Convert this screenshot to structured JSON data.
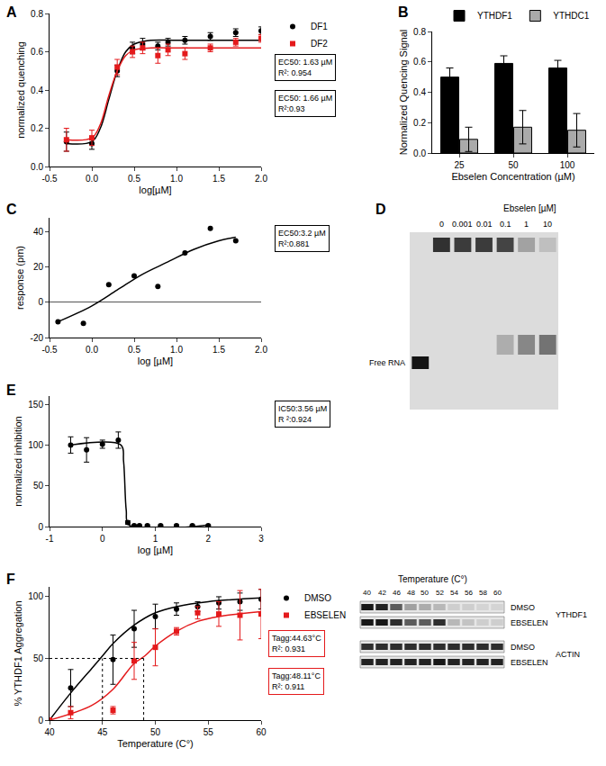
{
  "chart_data": [
    {
      "type": "scatter",
      "title": "A",
      "x_label": "log[µM]",
      "y_label": "normalized quenching",
      "xlim": [
        -0.5,
        2
      ],
      "ylim": [
        0,
        0.8
      ],
      "xticks": [
        -0.5,
        {
          "value": 0,
          "label": "0.0"
        },
        0.5,
        {
          "value": 1,
          "label": "1.0"
        },
        1.5,
        {
          "value": 2,
          "label": "2.0"
        }
      ],
      "yticks": [
        {
          "value": 0,
          "label": "0.0"
        },
        0.2,
        0.4,
        0.6,
        0.8
      ],
      "legend": "top right",
      "series": [
        {
          "name": "DF1",
          "color": "#000000",
          "marker": "circle",
          "x": [
            -0.3,
            0,
            0.3,
            0.48,
            0.6,
            0.78,
            0.9,
            1.1,
            1.4,
            1.7,
            2.0
          ],
          "values": [
            0.13,
            0.12,
            0.5,
            0.62,
            0.64,
            0.63,
            0.65,
            0.66,
            0.68,
            0.7,
            0.71
          ],
          "errors": [
            0.05,
            0.03,
            0.03,
            0.03,
            0.03,
            0.02,
            0.02,
            0.02,
            0.02,
            0.02,
            0.02
          ],
          "fit_x": [
            -0.3,
            0,
            0.1,
            0.2,
            0.3,
            0.4,
            0.5,
            0.7,
            1,
            1.5,
            2.0
          ],
          "fit_values": [
            0.12,
            0.13,
            0.2,
            0.35,
            0.5,
            0.6,
            0.64,
            0.66,
            0.66,
            0.66,
            0.66
          ]
        },
        {
          "name": "DF2",
          "color": "#e41a1c",
          "marker": "square",
          "x": [
            -0.3,
            0,
            0.3,
            0.48,
            0.6,
            0.78,
            0.9,
            1.1,
            1.4,
            1.7,
            2.0
          ],
          "values": [
            0.14,
            0.15,
            0.52,
            0.6,
            0.62,
            0.58,
            0.61,
            0.59,
            0.62,
            0.65,
            0.67
          ],
          "errors": [
            0.06,
            0.04,
            0.04,
            0.03,
            0.03,
            0.04,
            0.03,
            0.03,
            0.02,
            0.02,
            0.02
          ],
          "fit_x": [
            -0.3,
            0,
            0.1,
            0.2,
            0.3,
            0.4,
            0.5,
            0.7,
            1,
            1.5,
            2.0
          ],
          "fit_values": [
            0.14,
            0.15,
            0.22,
            0.37,
            0.5,
            0.58,
            0.61,
            0.62,
            0.62,
            0.62,
            0.62
          ]
        }
      ],
      "annotations": [
        [
          "EC50: 1.63 µM",
          "R²: 0.954"
        ],
        [
          "EC50: 1.66 µM",
          "R²:0.93"
        ]
      ],
      "annotation_color": "#000000"
    },
    {
      "type": "bar",
      "title": "B",
      "x_label": "Ebselen Concentration (µM)",
      "y_label": "Normalized Quencing Signal",
      "categories": [
        "25",
        "50",
        "100"
      ],
      "ylim": [
        0,
        0.8
      ],
      "yticks": [
        {
          "value": 0,
          "label": "0.0"
        },
        0.2,
        0.4,
        0.6,
        0.8
      ],
      "legend": "top right",
      "series": [
        {
          "name": "YTHDF1",
          "color": "#000000",
          "values": [
            0.5,
            0.59,
            0.56
          ],
          "errors": [
            0.06,
            0.05,
            0.05
          ]
        },
        {
          "name": "YTHDC1",
          "color": "#aaaaaa",
          "values": [
            0.09,
            0.17,
            0.15
          ],
          "errors": [
            0.08,
            0.11,
            0.11
          ]
        }
      ]
    },
    {
      "type": "scatter",
      "title": "C",
      "x_label": "log [µM]",
      "y_label": "response (pm)",
      "xlim": [
        -0.5,
        2
      ],
      "ylim": [
        -20,
        48
      ],
      "xticks": [
        -0.5,
        {
          "value": 0,
          "label": "0.0"
        },
        0.5,
        {
          "value": 1,
          "label": "1.0"
        },
        1.5,
        {
          "value": 2,
          "label": "2.0"
        }
      ],
      "yticks": [
        -20,
        0,
        20,
        40
      ],
      "series": [
        {
          "color": "#000000",
          "marker": "circle",
          "x": [
            -0.4,
            -0.1,
            0.2,
            0.5,
            0.78,
            1.1,
            1.4,
            1.7
          ],
          "values": [
            -11,
            -12,
            10,
            15,
            9,
            28,
            42,
            35
          ],
          "fit_x": [
            -0.4,
            0,
            0.3,
            0.6,
            0.9,
            1.2,
            1.5,
            1.7
          ],
          "fit_values": [
            -11,
            -2,
            7,
            16,
            23,
            30,
            35,
            37
          ]
        }
      ],
      "annotations": [
        [
          "EC50:3.2 µM",
          "R²:0.881"
        ]
      ],
      "annotation_color": "#000000"
    },
    {
      "type": "scatter",
      "title": "E",
      "x_label": "log [µM]",
      "y_label": "normalized inhibition",
      "xlim": [
        -1,
        3
      ],
      "ylim": [
        0,
        160
      ],
      "xticks": [
        -1,
        0,
        1,
        2,
        3
      ],
      "yticks": [
        0,
        50,
        100,
        150
      ],
      "series": [
        {
          "color": "#000000",
          "marker": "circle",
          "x": [
            -0.6,
            -0.3,
            0,
            0.3,
            0.48,
            0.6,
            0.7,
            0.85,
            1.1,
            1.4,
            1.7,
            2.0
          ],
          "values": [
            100,
            94,
            101,
            106,
            5,
            1,
            1,
            1,
            1,
            1,
            1,
            1
          ],
          "errors": [
            10,
            15,
            5,
            10,
            2,
            1,
            1,
            1,
            1,
            1,
            1,
            1
          ],
          "fit_x": [
            -0.6,
            0.35,
            0.4,
            0.45,
            0.5,
            2.0
          ],
          "fit_values": [
            100,
            100,
            80,
            20,
            2,
            2
          ]
        }
      ],
      "annotations": [
        [
          "IC50:3.56 µM",
          "R ²:0.924"
        ]
      ],
      "annotation_color": "#000000"
    },
    {
      "type": "scatter",
      "title": "F",
      "x_label": "Temperature (C°)",
      "y_label": "% YTHDF1 Aggregation",
      "xlim": [
        40,
        60
      ],
      "ylim": [
        0,
        108
      ],
      "xticks": [
        40,
        45,
        50,
        55,
        60
      ],
      "yticks": [
        0,
        50,
        100
      ],
      "legend": "top right",
      "series": [
        {
          "name": "DMSO",
          "color": "#000000",
          "marker": "circle",
          "x": [
            40,
            42,
            46,
            48,
            50,
            52,
            54,
            56,
            58,
            60
          ],
          "values": [
            0,
            26,
            49,
            74,
            84,
            90,
            92,
            95,
            96,
            98
          ],
          "errors": [
            0,
            15,
            20,
            15,
            10,
            5,
            4,
            5,
            7,
            8
          ],
          "fit_x": [
            40,
            42,
            44,
            45,
            46,
            48,
            50,
            52,
            55,
            60
          ],
          "fit_values": [
            0,
            22,
            42,
            52,
            62,
            77,
            87,
            92,
            96,
            99
          ]
        },
        {
          "name": "EBSELEN",
          "color": "#e41a1c",
          "marker": "square",
          "x": [
            40,
            42,
            46,
            48,
            50,
            52,
            54,
            56,
            58,
            60
          ],
          "values": [
            0,
            6,
            8,
            48,
            59,
            72,
            87,
            86,
            85,
            86
          ],
          "errors": [
            0,
            5,
            3,
            15,
            15,
            3,
            5,
            10,
            20,
            20
          ],
          "fit_x": [
            40,
            44,
            46,
            48,
            49,
            50,
            52,
            54,
            56,
            60
          ],
          "fit_values": [
            0,
            12,
            25,
            46,
            52,
            60,
            72,
            80,
            84,
            88
          ]
        }
      ],
      "guide_lines": {
        "x": [
          45,
          48.9
        ],
        "y": 50
      },
      "annotations": [
        [
          "Tagg:44.63°C",
          "R²: 0.931"
        ],
        [
          "Tagg:48.11°C",
          "R²: 0.911"
        ]
      ],
      "annotation_color": "#e41a1c"
    }
  ],
  "gel": {
    "title": "D",
    "label": "Ebselen [µM]",
    "free_label": "Free RNA",
    "lanes": [
      null,
      "0",
      "0.001",
      "0.01",
      "0.1",
      "1",
      "10"
    ],
    "shifted": [
      0,
      0.9,
      0.85,
      0.85,
      0.8,
      0.3,
      0.15
    ],
    "smear": [
      0,
      0,
      0,
      0,
      0.25,
      0.45,
      0.55
    ],
    "free": [
      1,
      0,
      0,
      0,
      0,
      0,
      0
    ]
  },
  "blot": {
    "title": "Temperature (C°)",
    "lanes": [
      40,
      42,
      46,
      48,
      50,
      52,
      54,
      56,
      58,
      60
    ],
    "groups": [
      {
        "name": "YTHDF1",
        "rows": [
          {
            "name": "DMSO",
            "bands": [
              0.9,
              0.85,
              0.6,
              0.3,
              0.25,
              0.2,
              0.1,
              0.1,
              0.08,
              0.08
            ]
          },
          {
            "name": "EBSELEN",
            "bands": [
              0.9,
              0.9,
              0.8,
              0.6,
              0.6,
              0.8,
              0.2,
              0.15,
              0.1,
              0.1
            ]
          }
        ]
      },
      {
        "name": "ACTIN",
        "rows": [
          {
            "name": "DMSO",
            "bands": [
              0.8,
              0.8,
              0.8,
              0.8,
              0.8,
              0.8,
              0.8,
              0.8,
              0.8,
              0.8
            ]
          },
          {
            "name": "EBSELEN",
            "bands": [
              0.85,
              0.85,
              0.85,
              0.85,
              0.85,
              0.9,
              0.85,
              0.85,
              0.85,
              0.85
            ]
          }
        ]
      }
    ]
  }
}
